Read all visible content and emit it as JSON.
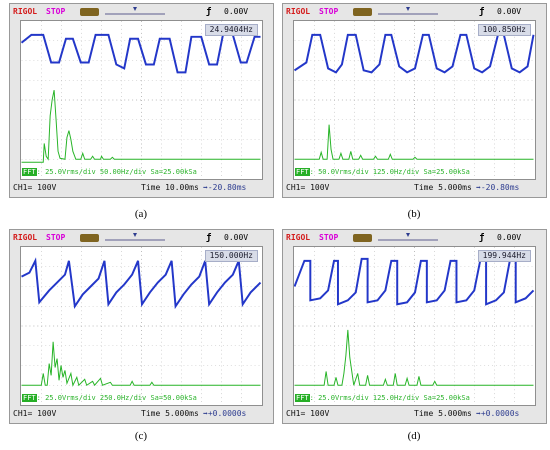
{
  "panels": [
    {
      "brand": "RIGOL",
      "state": "STOP",
      "trigger_level": "0.00V",
      "frequency": "24.9404Hz",
      "fft_text": "25.0Vrms/div 50.00Hz/div Sa=25.00kSa",
      "channel_text": "CH1=  100V",
      "time_text": "Time 10.00ms",
      "offset_text": "➡-20.80ms",
      "caption": "(a)"
    },
    {
      "brand": "RIGOL",
      "state": "STOP",
      "trigger_level": "0.00V",
      "frequency": "100.850Hz",
      "fft_text": "50.0Vrms/div 125.0Hz/div Sa=25.00kSa",
      "channel_text": "CH1=  100V",
      "time_text": "Time 5.000ms",
      "offset_text": "➡-20.80ms",
      "caption": "(b)"
    },
    {
      "brand": "RIGOL",
      "state": "STOP",
      "trigger_level": "0.00V",
      "frequency": "150.000Hz",
      "fft_text": "25.0Vrms/div 250.0Hz/div Sa=50.00kSa",
      "channel_text": "CH1=  100V",
      "time_text": "Time 5.000ms",
      "offset_text": "➡+0.0000s",
      "caption": "(c)"
    },
    {
      "brand": "RIGOL",
      "state": "STOP",
      "trigger_level": "0.00V",
      "frequency": "199.944Hz",
      "fft_text": "25.0Vrms/div 125.0Hz/div Sa=25.00kSa",
      "channel_text": "CH1=  100V",
      "time_text": "Time 5.000ms",
      "offset_text": "➡+0.0000s",
      "caption": "(d)"
    }
  ],
  "fft_tag": "FFT",
  "colors": {
    "waveform": "#2337c9",
    "fft": "#27b427",
    "grid": "#bdbdbd"
  }
}
